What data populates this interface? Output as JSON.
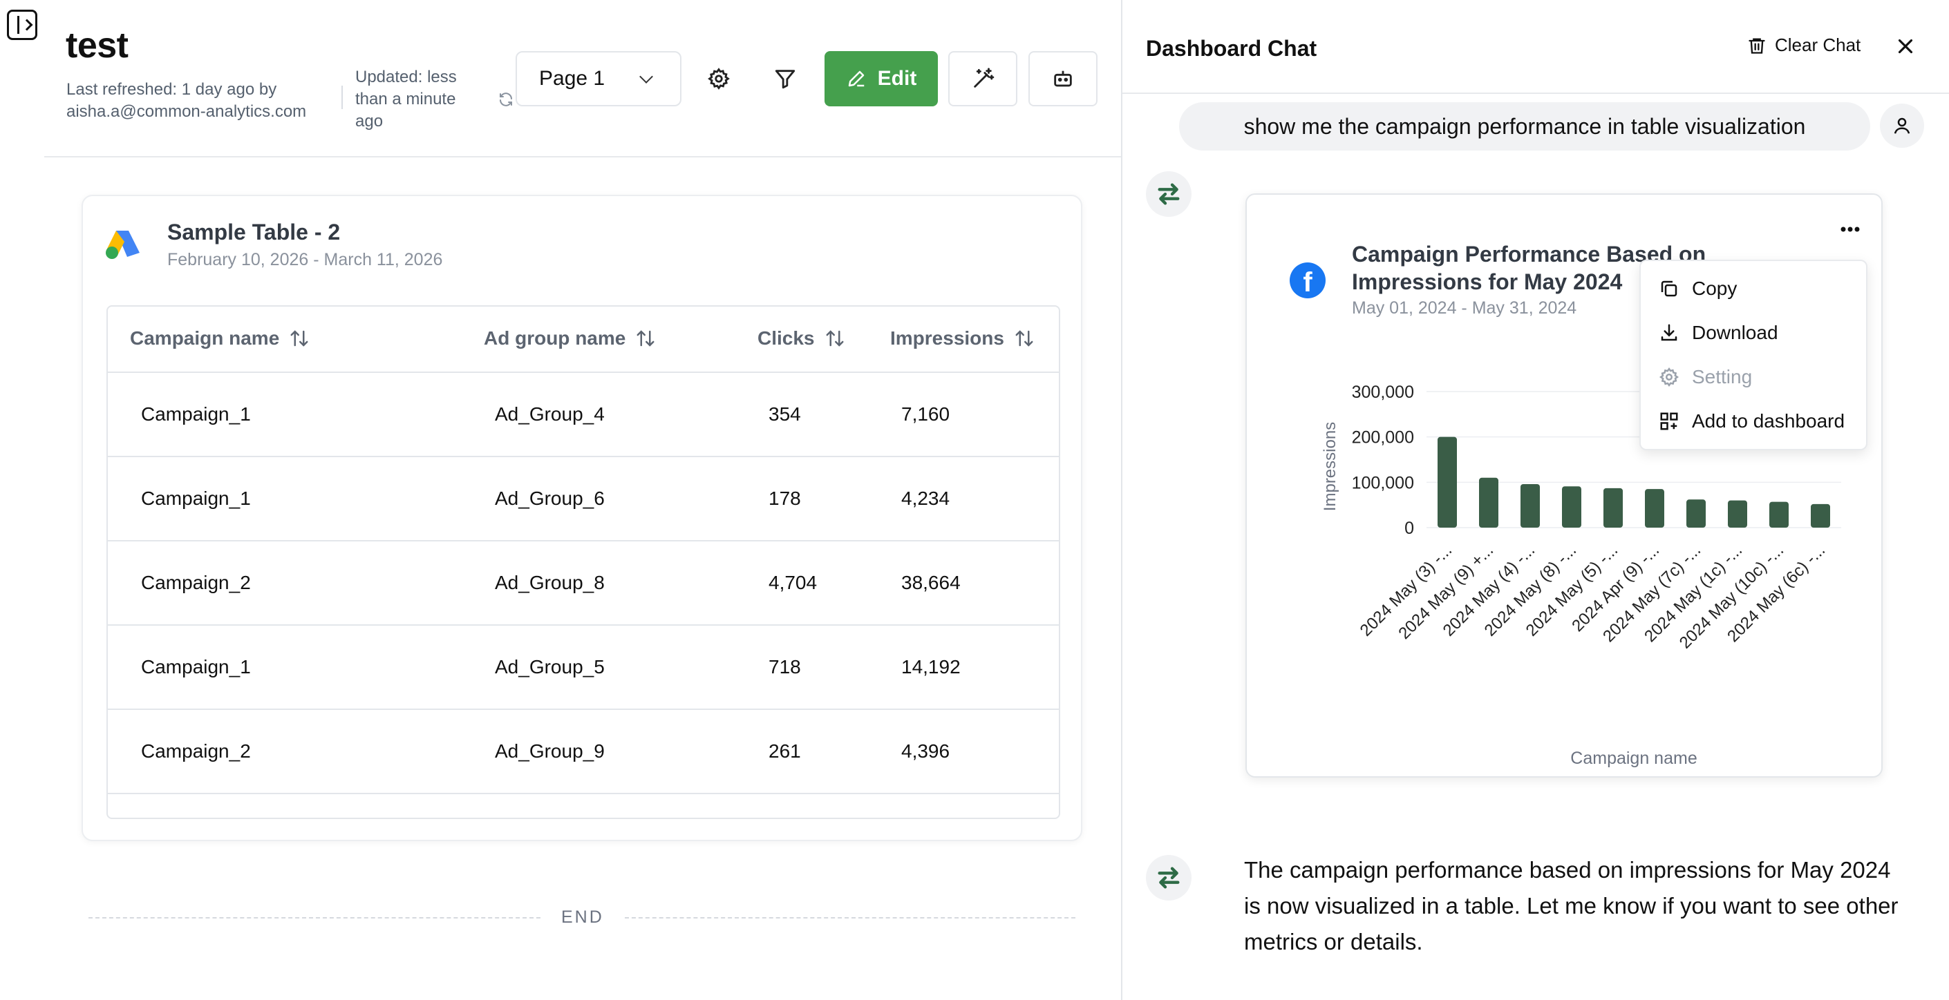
{
  "dashboard": {
    "title": "test",
    "refreshed": "Last refreshed: 1 day ago by aisha.a@common-analytics.com",
    "updated": "Updated: less than a minute ago",
    "page_selector": "Page 1",
    "edit_label": "Edit",
    "end_label": "END"
  },
  "table_card": {
    "title": "Sample Table - 2",
    "date_range": "February 10, 2026 - March 11, 2026",
    "headers": [
      "Campaign name",
      "Ad group name",
      "Clicks",
      "Impressions"
    ],
    "rows": [
      [
        "Campaign_1",
        "Ad_Group_4",
        "354",
        "7,160"
      ],
      [
        "Campaign_1",
        "Ad_Group_6",
        "178",
        "4,234"
      ],
      [
        "Campaign_2",
        "Ad_Group_8",
        "4,704",
        "38,664"
      ],
      [
        "Campaign_1",
        "Ad_Group_5",
        "718",
        "14,192"
      ],
      [
        "Campaign_2",
        "Ad_Group_9",
        "261",
        "4,396"
      ]
    ]
  },
  "chat": {
    "title": "Dashboard Chat",
    "clear_label": "Clear Chat",
    "user_message": "show me the campaign performance in table visualization",
    "bot_message": "The campaign performance based on impressions for May 2024 is now visualized in a table. Let me know if you want to see other metrics or details.",
    "chart_card": {
      "title": "Campaign Performance Based on Impressions for May 2024",
      "date_range": "May 01, 2024 - May 31, 2024"
    },
    "menu": {
      "copy": "Copy",
      "download": "Download",
      "setting": "Setting",
      "add": "Add to dashboard"
    }
  },
  "chart_data": {
    "type": "bar",
    "categories": [
      "2024 May (3) -...",
      "2024 May (9) +...",
      "2024 May (4) -...",
      "2024 May (8) -...",
      "2024 May (5) -...",
      "2024 Apr (9) -...",
      "2024 May (7c) -...",
      "2024 May (1c) -...",
      "2024 May (10c) -...",
      "2024 May (6c) -..."
    ],
    "values": [
      200000,
      110000,
      96000,
      91000,
      87000,
      85000,
      62000,
      60000,
      57000,
      52000
    ],
    "xlabel": "Campaign name",
    "ylabel": "Impressions",
    "ylim": [
      0,
      300000
    ],
    "yticks": [
      "300,000",
      "200,000",
      "100,000",
      "0"
    ],
    "grid": true,
    "bar_color": "#3a5d47"
  },
  "colors": {
    "edit_green": "#45a04d",
    "bar": "#3a5d47",
    "facebook": "#1877f2"
  }
}
